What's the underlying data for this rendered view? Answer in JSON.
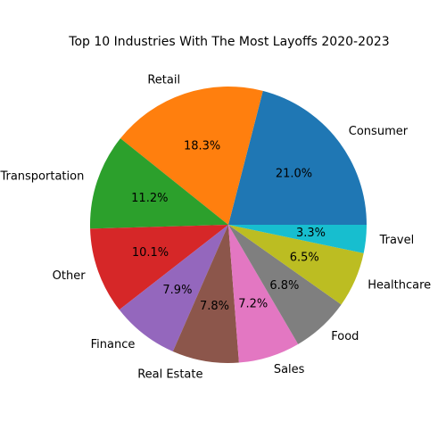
{
  "chart_data": {
    "type": "pie",
    "title": "Top 10 Industries With The Most Layoffs 2020-2023",
    "start_angle_deg": 0,
    "direction": "counterclockwise",
    "slices": [
      {
        "label": "Consumer",
        "value": 21.0,
        "pct_label": "21.0%",
        "color": "#1f77b4"
      },
      {
        "label": "Retail",
        "value": 18.3,
        "pct_label": "18.3%",
        "color": "#ff7f0e"
      },
      {
        "label": "Transportation",
        "value": 11.2,
        "pct_label": "11.2%",
        "color": "#2ca02c"
      },
      {
        "label": "Other",
        "value": 10.1,
        "pct_label": "10.1%",
        "color": "#d62728"
      },
      {
        "label": "Finance",
        "value": 7.9,
        "pct_label": "7.9%",
        "color": "#9467bd"
      },
      {
        "label": "Real Estate",
        "value": 7.8,
        "pct_label": "7.8%",
        "color": "#8c564b"
      },
      {
        "label": "Sales",
        "value": 7.2,
        "pct_label": "7.2%",
        "color": "#e377c2"
      },
      {
        "label": "Food",
        "value": 6.8,
        "pct_label": "6.8%",
        "color": "#7f7f7f"
      },
      {
        "label": "Healthcare",
        "value": 6.5,
        "pct_label": "6.5%",
        "color": "#bcbd22"
      },
      {
        "label": "Travel",
        "value": 3.3,
        "pct_label": "3.3%",
        "color": "#17becf"
      }
    ]
  }
}
